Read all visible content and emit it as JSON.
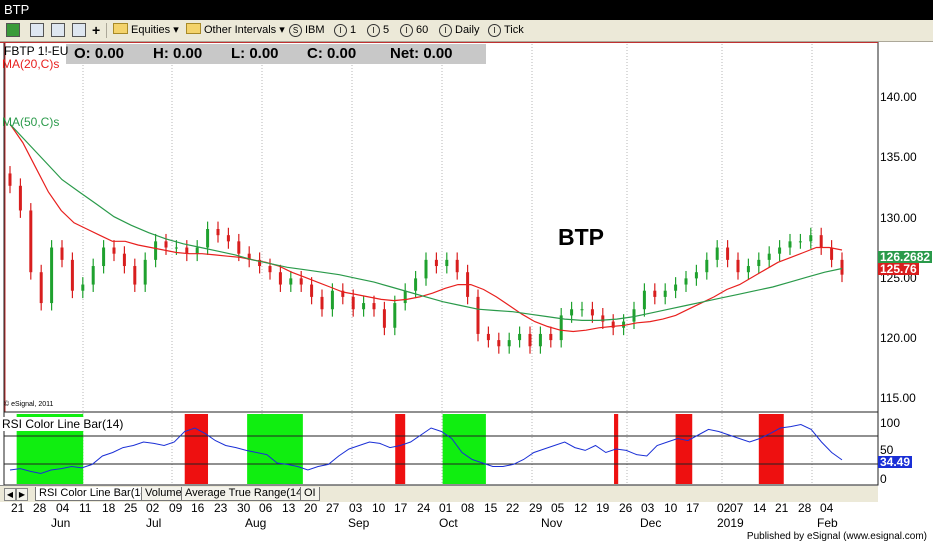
{
  "window": {
    "title": "BTP"
  },
  "toolbar": {
    "equities_label": "Equities",
    "other_intervals_label": "Other Intervals",
    "symbol_ibm": "IBM",
    "interval_1": "1",
    "interval_5": "5",
    "interval_60": "60",
    "daily_label": "Daily",
    "tick_label": "Tick"
  },
  "header": {
    "symbol": "FBTP 1!-EU",
    "ohlc": {
      "open": "O:  0.00",
      "high": "H:  0.00",
      "low": "L:  0.00",
      "close": "C:  0.00",
      "net": "Net:  0.00"
    },
    "ma20": "MA(20,C)s",
    "ma50": "MA(50,C)s",
    "big_title": "BTP",
    "copyright": "© eSignal, 2011"
  },
  "price_axis": {
    "ticks": [
      "140.00",
      "135.00",
      "130.00",
      "125.00",
      "120.00",
      "115.00"
    ],
    "last_price": "125.76",
    "ma_value": "126.2682"
  },
  "rsi_panel": {
    "label": "RSI Color Line Bar(14)",
    "ticks": [
      "100",
      "50",
      "0"
    ],
    "current": "34.49"
  },
  "tabs": [
    "RSI Color Line Bar(14)",
    "Volume",
    "Average True Range(14)",
    "OI"
  ],
  "x_axis": {
    "days": [
      "21",
      "28",
      "04",
      "11",
      "18",
      "25",
      "02",
      "09",
      "16",
      "23",
      "30",
      "06",
      "13",
      "20",
      "27",
      "03",
      "10",
      "17",
      "24",
      "01",
      "08",
      "15",
      "22",
      "29",
      "05",
      "12",
      "19",
      "26",
      "03",
      "10",
      "17",
      "02",
      "07",
      "14",
      "21",
      "28",
      "04"
    ],
    "months": [
      "Jun",
      "Jul",
      "Aug",
      "Sep",
      "Oct",
      "Nov",
      "Dec",
      "2019",
      "Feb"
    ]
  },
  "footer": {
    "published": "Published by eSignal (www.esignal.com)"
  },
  "colors": {
    "up_bar": "#1fa12e",
    "down_bar": "#d81e1e",
    "ma20": "#e8201e",
    "ma50": "#2a9a4a",
    "rsi_line": "#1a2fd6",
    "oversold_fill": "#10ee10",
    "overbought_fill": "#ee1010",
    "last_price_tag": "#d81e1e",
    "ma_tag": "#2a9a4a",
    "rsi_tag": "#1a2fd6"
  },
  "chart_data": {
    "type": "candlestick",
    "title": "BTP",
    "ylim": [
      115,
      144
    ],
    "closes": [
      133,
      131,
      126,
      123.5,
      128,
      127,
      124.5,
      125,
      126.5,
      128,
      127.5,
      126.5,
      125,
      127,
      128.5,
      128,
      128,
      127.5,
      128,
      129.5,
      129,
      128.5,
      127.5,
      127,
      126.5,
      126,
      125,
      125.5,
      125,
      124,
      123,
      124.5,
      124,
      123,
      123.5,
      123,
      121.5,
      123.5,
      124.5,
      125.5,
      127,
      126.5,
      127,
      126,
      124,
      121,
      120.5,
      120,
      120.5,
      121,
      120,
      121,
      120.5,
      122.5,
      123,
      123,
      122.5,
      122,
      121.5,
      122,
      123,
      124.5,
      124,
      124.5,
      125,
      125.5,
      126,
      127,
      128,
      127,
      126,
      126.5,
      127,
      127.5,
      128,
      128.5,
      128.5,
      129,
      128,
      127,
      125.8
    ],
    "ma20": [
      138,
      136.5,
      134.5,
      132.5,
      131,
      130,
      129.5,
      129,
      128.5,
      128.5,
      128.2,
      128,
      127.8,
      127.6,
      127.5,
      127.5,
      127.4,
      127.3,
      127.2,
      127,
      126.8,
      126.5,
      126,
      125.6,
      125.2,
      124.8,
      124.4,
      124.2,
      124,
      123.8,
      123.7,
      123.8,
      124,
      124.3,
      124.7,
      125,
      125,
      124.6,
      124,
      123.3,
      122.6,
      122,
      121.6,
      121.3,
      121.2,
      121.3,
      121.5,
      121.6,
      121.7,
      121.9,
      122,
      122.2,
      122.5,
      123,
      123.5,
      124,
      124.6,
      125,
      125.6,
      126.2,
      126.8,
      127.2,
      127.6,
      128,
      128,
      127.8
    ],
    "ma50": [
      138,
      136.5,
      135,
      133.5,
      132.5,
      131.5,
      130.5,
      129.8,
      129.2,
      128.7,
      128.3,
      128,
      127.7,
      127.4,
      127,
      126.7,
      126.4,
      126.2,
      126,
      125.8,
      125.5,
      125.2,
      124.8,
      124.4,
      124,
      123.6,
      123.3,
      123,
      122.9,
      122.8,
      122.6,
      122.4,
      122.2,
      122.1,
      122.1,
      122.2,
      122.4,
      122.7,
      123,
      123.3,
      123.6,
      123.9,
      124.2,
      124.5,
      124.8,
      125.2,
      125.6,
      126,
      126.3
    ],
    "rsi": [
      20,
      22,
      18,
      15,
      20,
      22,
      25,
      23,
      28,
      40,
      45,
      52,
      55,
      60,
      58,
      55,
      60,
      75,
      80,
      72,
      62,
      55,
      52,
      48,
      45,
      42,
      30,
      28,
      25,
      20,
      25,
      28,
      40,
      50,
      55,
      60,
      58,
      52,
      55,
      60,
      70,
      80,
      75,
      65,
      45,
      35,
      30,
      25,
      25,
      28,
      35,
      45,
      50,
      55,
      60,
      52,
      48,
      55,
      45,
      50,
      48,
      42,
      40,
      55,
      60,
      65,
      62,
      70,
      78,
      75,
      70,
      65,
      60,
      65,
      72,
      80,
      82,
      85,
      78,
      60,
      45,
      34.49
    ],
    "oversold_zones": [
      [
        0.008,
        0.088
      ],
      [
        0.285,
        0.352
      ],
      [
        0.52,
        0.572
      ]
    ],
    "overbought_zones": [
      [
        0.21,
        0.238
      ],
      [
        0.463,
        0.475
      ],
      [
        0.726,
        0.731
      ],
      [
        0.8,
        0.82
      ],
      [
        0.9,
        0.93
      ]
    ]
  }
}
